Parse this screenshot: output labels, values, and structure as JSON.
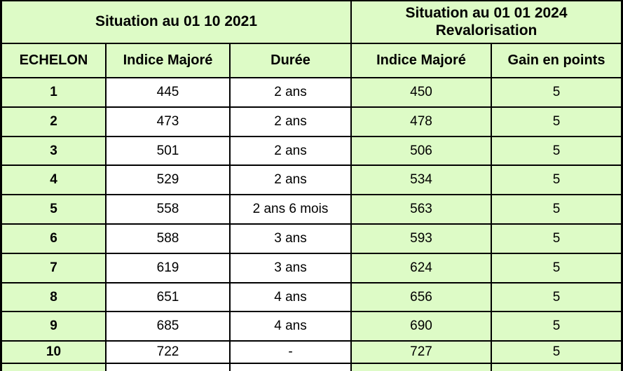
{
  "header": {
    "group_left": "Situation au 01 10 2021",
    "group_right_line1": "Situation au 01 01 2024",
    "group_right_line2": "Revalorisation",
    "columns": [
      "ECHELON",
      "Indice Majoré",
      "Durée",
      "Indice Majoré",
      "Gain en points"
    ]
  },
  "rows": [
    {
      "echelon": "1",
      "indice_2021": "445",
      "duree": "2 ans",
      "indice_2024": "450",
      "gain": "5"
    },
    {
      "echelon": "2",
      "indice_2021": "473",
      "duree": "2 ans",
      "indice_2024": "478",
      "gain": "5"
    },
    {
      "echelon": "3",
      "indice_2021": "501",
      "duree": "2 ans",
      "indice_2024": "506",
      "gain": "5"
    },
    {
      "echelon": "4",
      "indice_2021": "529",
      "duree": "2 ans",
      "indice_2024": "534",
      "gain": "5"
    },
    {
      "echelon": "5",
      "indice_2021": "558",
      "duree": "2 ans 6 mois",
      "indice_2024": "563",
      "gain": "5"
    },
    {
      "echelon": "6",
      "indice_2021": "588",
      "duree": "3 ans",
      "indice_2024": "593",
      "gain": "5"
    },
    {
      "echelon": "7",
      "indice_2021": "619",
      "duree": "3 ans",
      "indice_2024": "624",
      "gain": "5"
    },
    {
      "echelon": "8",
      "indice_2021": "651",
      "duree": "4 ans",
      "indice_2024": "656",
      "gain": "5"
    },
    {
      "echelon": "9",
      "indice_2021": "685",
      "duree": "4 ans",
      "indice_2024": "690",
      "gain": "5"
    },
    {
      "echelon": "10",
      "indice_2021": "722",
      "duree": "-",
      "indice_2024": "727",
      "gain": "5"
    }
  ],
  "colors": {
    "cell_green": "#DDFBC6",
    "cell_white": "#FFFFFF",
    "border": "#000000",
    "text": "#000000"
  }
}
